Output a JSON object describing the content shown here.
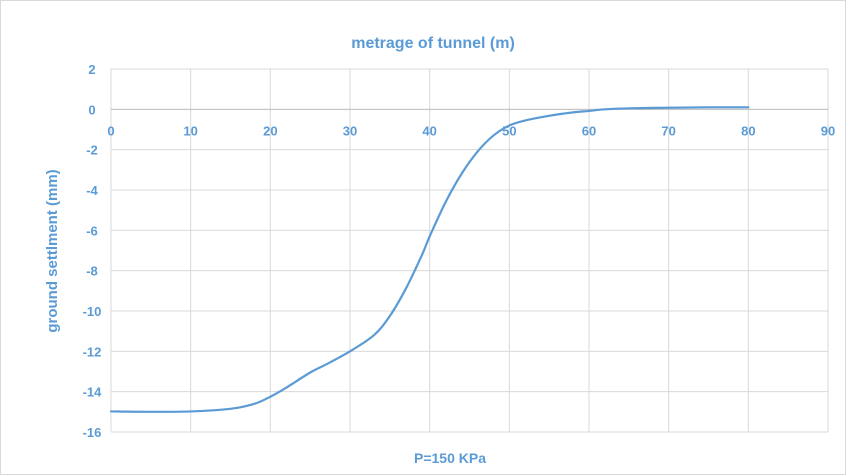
{
  "chart_data": {
    "type": "line",
    "title": "metrage of tunnel (m)",
    "xlabel": "metrage of tunnel (m)",
    "ylabel": "ground settlment (mm)",
    "footer": "P=150 KPa",
    "xlim": [
      0,
      90
    ],
    "ylim": [
      -16,
      2
    ],
    "x_ticks": [
      0,
      10,
      20,
      30,
      40,
      50,
      60,
      70,
      80,
      90
    ],
    "y_ticks": [
      2,
      0,
      -2,
      -4,
      -6,
      -8,
      -10,
      -12,
      -14,
      -16
    ],
    "grid": true,
    "legend": "none",
    "color": "#5b9bd5",
    "series": [
      {
        "x": [
          0,
          5,
          10,
          15,
          18,
          20,
          22,
          25,
          27,
          30,
          33,
          35,
          37,
          39,
          40,
          42,
          44,
          46,
          48,
          50,
          52,
          55,
          58,
          60,
          62,
          65,
          70,
          75,
          80
        ],
        "y": [
          -14.98,
          -15.0,
          -14.98,
          -14.85,
          -14.6,
          -14.25,
          -13.8,
          -13.05,
          -12.65,
          -12.0,
          -11.2,
          -10.25,
          -8.9,
          -7.25,
          -6.3,
          -4.6,
          -3.2,
          -2.1,
          -1.3,
          -0.8,
          -0.55,
          -0.32,
          -0.15,
          -0.08,
          0.0,
          0.05,
          0.08,
          0.1,
          0.1
        ]
      }
    ]
  }
}
